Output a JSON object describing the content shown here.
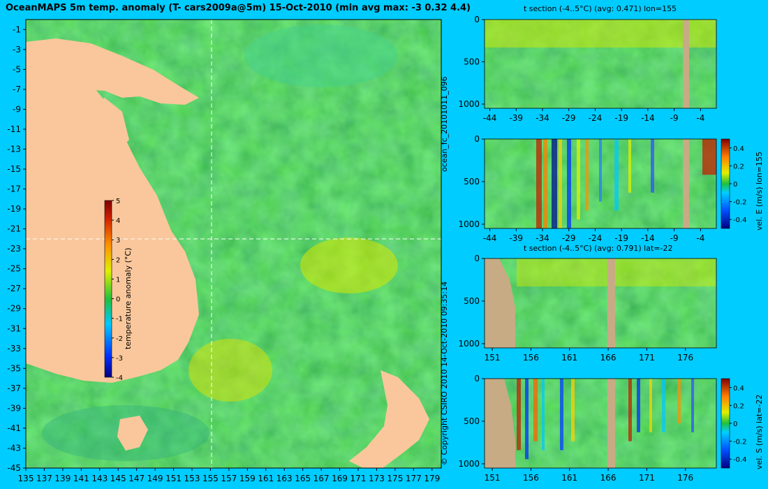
{
  "title": "OceanMAPS 5m temp. anomaly (T- cars2009a@5m) 15-Oct-2010 (min avg max: -3 0.32 4.4)",
  "run_id": "ocean_fc_20101011_096",
  "copyright": "© Copyright CSIRO 2010   14-Oct-2010 09:35:14",
  "colors": {
    "background": "#00ccff",
    "land": "#f9c79b",
    "section_land": "#c7ab85",
    "map_sea": "#26c23a"
  },
  "chart_data": [
    {
      "type": "heatmap",
      "name_hint": "map",
      "x_ticks": [
        135,
        137,
        139,
        141,
        143,
        145,
        147,
        149,
        151,
        153,
        155,
        157,
        159,
        161,
        163,
        165,
        167,
        169,
        171,
        173,
        175,
        177,
        179
      ],
      "y_ticks": [
        -1,
        -3,
        -5,
        -7,
        -9,
        -11,
        -13,
        -15,
        -17,
        -19,
        -21,
        -23,
        -25,
        -27,
        -29,
        -31,
        -33,
        -35,
        -37,
        -39,
        -41,
        -43,
        -45
      ],
      "xlim": [
        135,
        180
      ],
      "ylim": [
        -45,
        0
      ],
      "crosshair": {
        "lon": 155,
        "lat": -22
      },
      "colorbar": {
        "label": "temperature anomaly (°C)",
        "ticks": [
          5,
          4,
          3,
          2,
          1,
          0,
          -1,
          -2,
          -3,
          -4
        ],
        "range": [
          -4,
          5
        ]
      }
    },
    {
      "type": "heatmap",
      "title": "t section (-4..5°C) (avg: 0.471) lon=155",
      "x_ticks": [
        -44,
        -39,
        -34,
        -29,
        -24,
        -19,
        -14,
        -9,
        -4
      ],
      "y_ticks": [
        0,
        500,
        1000
      ]
    },
    {
      "type": "heatmap",
      "title": "",
      "x_ticks": [
        -44,
        -39,
        -34,
        -29,
        -24,
        -19,
        -14,
        -9,
        -4
      ],
      "y_ticks": [
        0,
        500,
        1000
      ],
      "colorbar": {
        "label": "vel. E (m/s) lon=155",
        "ticks": [
          0.4,
          0.2,
          0,
          -0.2,
          -0.4
        ]
      }
    },
    {
      "type": "heatmap",
      "title": "t section (-4..5°C) (avg: 0.791) lat=-22",
      "x_ticks": [
        151,
        156,
        161,
        166,
        171,
        176
      ],
      "y_ticks": [
        0,
        500,
        1000
      ]
    },
    {
      "type": "heatmap",
      "title": "",
      "x_ticks": [
        151,
        156,
        161,
        166,
        171,
        176
      ],
      "y_ticks": [
        0,
        500,
        1000
      ],
      "colorbar": {
        "label": "vel. S (m/s) lat=-22",
        "ticks": [
          0.4,
          0.2,
          0,
          -0.2,
          -0.4
        ]
      }
    }
  ]
}
